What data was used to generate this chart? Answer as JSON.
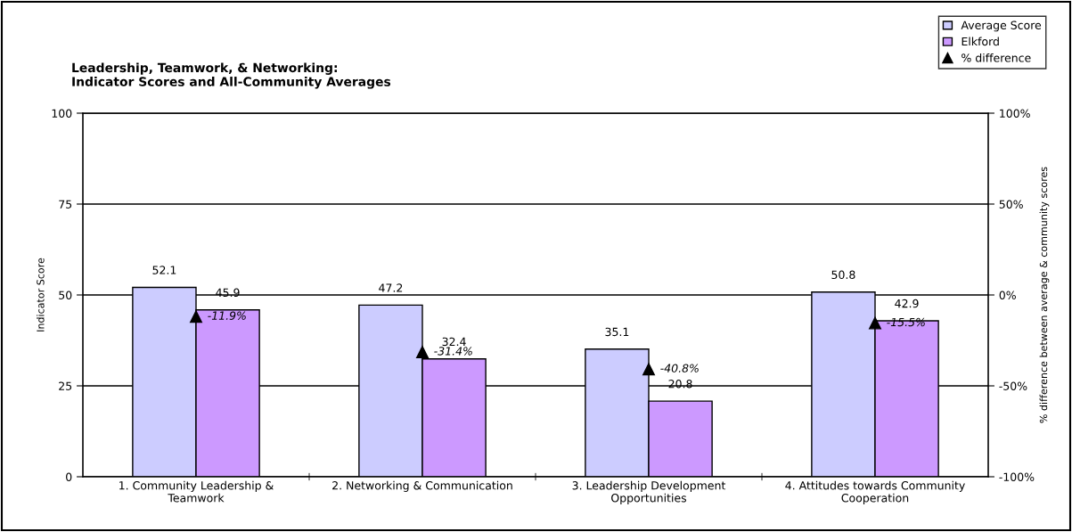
{
  "chart_data": {
    "type": "bar",
    "title": "Leadership, Teamwork, & Networking:\nIndicator Scores and All-Community Averages",
    "ylabel": "Indicator Score",
    "y2label": "% difference between average & community scores",
    "categories": [
      "1. Community Leadership &\nTeamwork",
      "2. Networking & Communication",
      "3. Leadership Development\nOpportunities",
      "4. Attitudes towards Community\nCooperation"
    ],
    "series": [
      {
        "name": "Average Score",
        "color": "#ccccff",
        "values": [
          52.1,
          47.2,
          35.1,
          50.8
        ]
      },
      {
        "name": "Elkford",
        "color": "#cc99ff",
        "values": [
          45.9,
          32.4,
          20.8,
          42.9
        ]
      },
      {
        "name": "% difference",
        "type": "scatter",
        "axis": "y2",
        "color": "#000000",
        "marker": "triangle",
        "values": [
          -11.9,
          -31.4,
          -40.8,
          -15.5
        ],
        "value_labels": [
          "-11.9%",
          "-31.4%",
          "-40.8%",
          "-15.5%"
        ]
      }
    ],
    "data_labels": true,
    "ylim": [
      0,
      100
    ],
    "yticks": [
      0,
      25,
      50,
      75,
      100
    ],
    "y2lim": [
      -100,
      100
    ],
    "y2ticks": [
      {
        "value": -100,
        "label": "-100%"
      },
      {
        "value": -50,
        "label": "-50%"
      },
      {
        "value": 0,
        "label": "0%"
      },
      {
        "value": 50,
        "label": "50%"
      },
      {
        "value": 100,
        "label": "100%"
      }
    ],
    "grid": "y",
    "legend": "top right"
  }
}
